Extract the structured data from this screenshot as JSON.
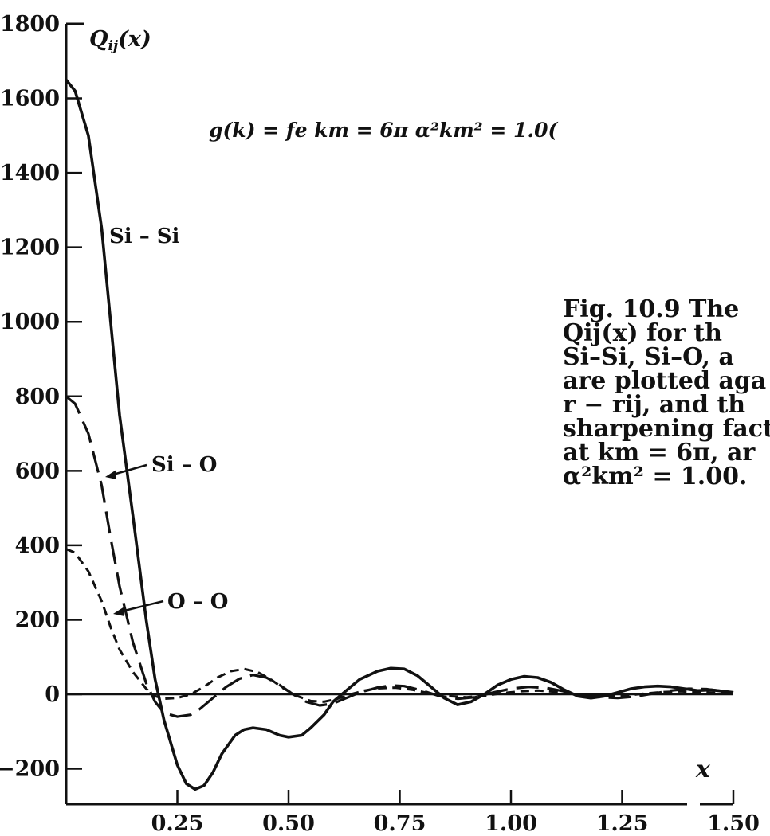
{
  "chart_data": {
    "type": "line",
    "ylabel": "Q_ij(x)",
    "xlabel": "x",
    "annotation": "g(k) = fe   km = 6π   α²km² = 1.0(",
    "xlim": [
      0.0,
      1.5
    ],
    "ylim": [
      -250,
      1800
    ],
    "x_ticks": [
      0.25,
      0.5,
      0.75,
      1.0,
      1.25,
      1.5
    ],
    "x_tick_labels": [
      "0.25",
      "0.50",
      "0.75",
      "1.00",
      "1.25",
      "1.50"
    ],
    "y_ticks": [
      -200,
      0,
      200,
      400,
      600,
      800,
      1000,
      1200,
      1400,
      1600,
      1800
    ],
    "y_tick_labels": [
      "−200",
      "0",
      "200",
      "400",
      "600",
      "800",
      "1000",
      "1200",
      "1400",
      "1600",
      "1800"
    ],
    "zero_line": true,
    "grid": false,
    "series": [
      {
        "name": "Si – Si",
        "style": "solid",
        "x": [
          0.0,
          0.02,
          0.05,
          0.08,
          0.1,
          0.12,
          0.15,
          0.18,
          0.2,
          0.22,
          0.25,
          0.27,
          0.29,
          0.31,
          0.33,
          0.35,
          0.38,
          0.4,
          0.42,
          0.45,
          0.48,
          0.5,
          0.53,
          0.55,
          0.58,
          0.6,
          0.63,
          0.66,
          0.7,
          0.73,
          0.76,
          0.79,
          0.82,
          0.85,
          0.88,
          0.91,
          0.94,
          0.97,
          1.0,
          1.03,
          1.06,
          1.09,
          1.12,
          1.15,
          1.18,
          1.21,
          1.24,
          1.27,
          1.3,
          1.33,
          1.36,
          1.39,
          1.42,
          1.45,
          1.48,
          1.5
        ],
        "y": [
          1650,
          1620,
          1500,
          1250,
          1000,
          750,
          480,
          200,
          40,
          -70,
          -190,
          -240,
          -255,
          -245,
          -210,
          -160,
          -110,
          -95,
          -90,
          -95,
          -110,
          -115,
          -110,
          -90,
          -55,
          -20,
          10,
          40,
          62,
          70,
          68,
          50,
          20,
          -10,
          -28,
          -20,
          0,
          25,
          40,
          48,
          45,
          32,
          12,
          -5,
          -10,
          -5,
          5,
          15,
          20,
          22,
          20,
          15,
          10,
          12,
          8,
          5
        ]
      },
      {
        "name": "Si – O",
        "style": "long-dash",
        "x": [
          0.0,
          0.02,
          0.05,
          0.08,
          0.1,
          0.12,
          0.15,
          0.18,
          0.2,
          0.22,
          0.25,
          0.28,
          0.3,
          0.33,
          0.36,
          0.39,
          0.42,
          0.45,
          0.48,
          0.51,
          0.54,
          0.57,
          0.6,
          0.63,
          0.66,
          0.7,
          0.73,
          0.76,
          0.8,
          0.84,
          0.88,
          0.92,
          0.96,
          1.0,
          1.04,
          1.08,
          1.12,
          1.16,
          1.2,
          1.24,
          1.28,
          1.32,
          1.36,
          1.4,
          1.44,
          1.48,
          1.5
        ],
        "y": [
          800,
          780,
          700,
          560,
          420,
          290,
          140,
          30,
          -20,
          -50,
          -60,
          -55,
          -40,
          -10,
          20,
          42,
          52,
          45,
          25,
          0,
          -20,
          -30,
          -25,
          -10,
          5,
          18,
          24,
          22,
          10,
          -5,
          -12,
          -8,
          5,
          15,
          20,
          17,
          8,
          -2,
          -8,
          -10,
          -6,
          2,
          10,
          15,
          14,
          8,
          5
        ]
      },
      {
        "name": "O – O",
        "style": "short-dash",
        "x": [
          0.0,
          0.02,
          0.05,
          0.08,
          0.1,
          0.12,
          0.15,
          0.18,
          0.2,
          0.22,
          0.25,
          0.28,
          0.31,
          0.34,
          0.37,
          0.4,
          0.43,
          0.46,
          0.49,
          0.52,
          0.55,
          0.58,
          0.61,
          0.64,
          0.67,
          0.7,
          0.74,
          0.78,
          0.82,
          0.86,
          0.9,
          0.94,
          0.98,
          1.02,
          1.06,
          1.1,
          1.14,
          1.18,
          1.22,
          1.26,
          1.3,
          1.34,
          1.38,
          1.42,
          1.46,
          1.5
        ],
        "y": [
          390,
          380,
          330,
          250,
          180,
          120,
          60,
          15,
          -5,
          -12,
          -10,
          0,
          20,
          45,
          62,
          68,
          60,
          40,
          15,
          -5,
          -18,
          -20,
          -12,
          0,
          10,
          16,
          18,
          12,
          2,
          -5,
          -8,
          -4,
          3,
          8,
          10,
          7,
          2,
          -3,
          -5,
          -3,
          2,
          6,
          8,
          6,
          4,
          3
        ]
      }
    ],
    "caption_lines": [
      "Fig. 10.9 The",
      "Qij(x)  for  th",
      "Si–Si, Si–O, a",
      "are plotted aga",
      "r − rij, and th",
      "sharpening facto",
      "at  km = 6π, ar",
      "α²km² = 1.00."
    ]
  }
}
